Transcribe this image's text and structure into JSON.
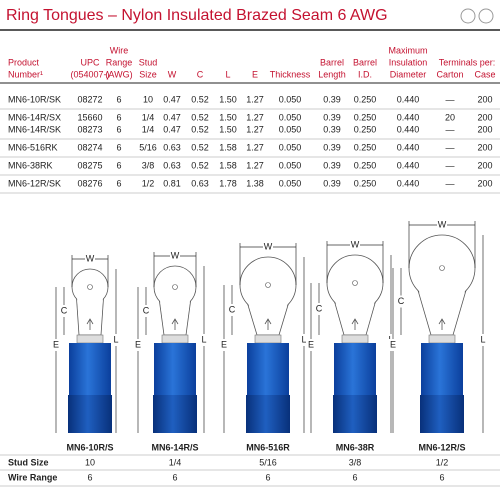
{
  "header": {
    "title": "Ring Tongues – Nylon Insulated Brazed Seam 6 AWG",
    "columns": [
      [
        "Product",
        "Number¹"
      ],
      [
        "UPC",
        "(054007-)"
      ],
      [
        "Wire",
        "Range",
        "(AWG)"
      ],
      [
        "Stud",
        "Size"
      ],
      [
        "W"
      ],
      [
        "C"
      ],
      [
        "L"
      ],
      [
        "E"
      ],
      [
        "Thickness"
      ],
      [
        "Barrel",
        "Length"
      ],
      [
        "Barrel",
        "I.D."
      ],
      [
        "Maximum",
        "Insulation",
        "Diameter"
      ],
      [
        "Carton"
      ],
      [
        "Case"
      ]
    ],
    "terminals_per": "Terminals per:"
  },
  "table": {
    "rows": [
      [
        "MN6-10R/SK",
        "08272",
        "6",
        "10",
        "0.47",
        "0.52",
        "1.50",
        "1.27",
        "0.050",
        "0.39",
        "0.250",
        "0.440",
        "—",
        "200"
      ],
      [
        "MN6-14R/SX",
        "15660",
        "6",
        "1/4",
        "0.47",
        "0.52",
        "1.50",
        "1.27",
        "0.050",
        "0.39",
        "0.250",
        "0.440",
        "20",
        "200"
      ],
      [
        "MN6-14R/SK",
        "08273",
        "6",
        "1/4",
        "0.47",
        "0.52",
        "1.50",
        "1.27",
        "0.050",
        "0.39",
        "0.250",
        "0.440",
        "—",
        "200"
      ],
      [
        "MN6-516RK",
        "08274",
        "6",
        "5/16",
        "0.63",
        "0.52",
        "1.58",
        "1.27",
        "0.050",
        "0.39",
        "0.250",
        "0.440",
        "—",
        "200"
      ],
      [
        "MN6-38RK",
        "08275",
        "6",
        "3/8",
        "0.63",
        "0.52",
        "1.58",
        "1.27",
        "0.050",
        "0.39",
        "0.250",
        "0.440",
        "—",
        "200"
      ],
      [
        "MN6-12R/SK",
        "08276",
        "6",
        "1/2",
        "0.81",
        "0.63",
        "1.78",
        "1.38",
        "0.050",
        "0.39",
        "0.250",
        "0.440",
        "—",
        "200"
      ]
    ]
  },
  "diagrams": {
    "dimension_labels": {
      "w": "W",
      "c": "C",
      "e": "E",
      "l": "L"
    },
    "row_labels": {
      "stud_size": "Stud Size",
      "wire_range": "Wire Range"
    },
    "items": [
      {
        "name": "MN6-10R/S",
        "stud_size": "10",
        "wire_range": "6"
      },
      {
        "name": "MN6-14R/S",
        "stud_size": "1/4",
        "wire_range": "6"
      },
      {
        "name": "MN6-516R",
        "stud_size": "5/16",
        "wire_range": "6"
      },
      {
        "name": "MN6-38R",
        "stud_size": "3/8",
        "wire_range": "6"
      },
      {
        "name": "MN6-12R/S",
        "stud_size": "1/2",
        "wire_range": "6"
      }
    ]
  }
}
